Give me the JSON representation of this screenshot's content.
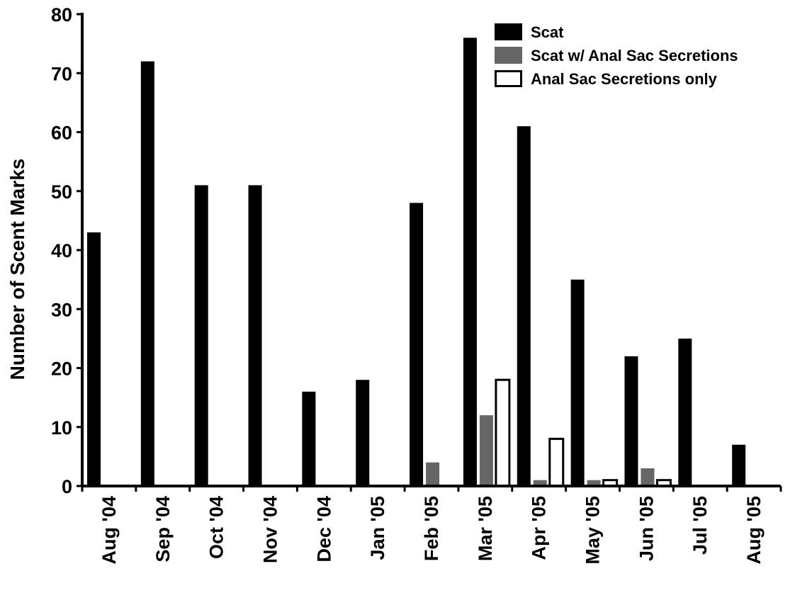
{
  "chart_data": {
    "type": "bar",
    "title": "",
    "xlabel": "",
    "ylabel": "Number of Scent Marks",
    "ylim": [
      0,
      80
    ],
    "yticks": [
      0,
      10,
      20,
      30,
      40,
      50,
      60,
      70,
      80
    ],
    "categories": [
      "Aug '04",
      "Sep '04",
      "Oct '04",
      "Nov '04",
      "Dec '04",
      "Jan '05",
      "Feb '05",
      "Mar '05",
      "Apr '05",
      "May '05",
      "Jun '05",
      "Jul '05",
      "Aug '05"
    ],
    "series": [
      {
        "name": "Scat",
        "color": "#000000",
        "values": [
          43,
          72,
          51,
          51,
          16,
          18,
          48,
          76,
          61,
          35,
          22,
          25,
          7
        ]
      },
      {
        "name": "Scat w/ Anal Sac Secretions",
        "color": "#666666",
        "values": [
          0,
          0,
          0,
          0,
          0,
          0,
          4,
          12,
          1,
          1,
          3,
          0,
          0
        ]
      },
      {
        "name": "Anal Sac Secretions only",
        "color": "#ffffff",
        "values": [
          0,
          0,
          0,
          0,
          0,
          0,
          0,
          18,
          8,
          1,
          1,
          0,
          0
        ]
      }
    ],
    "grid": false,
    "legend_position": "top-right"
  }
}
